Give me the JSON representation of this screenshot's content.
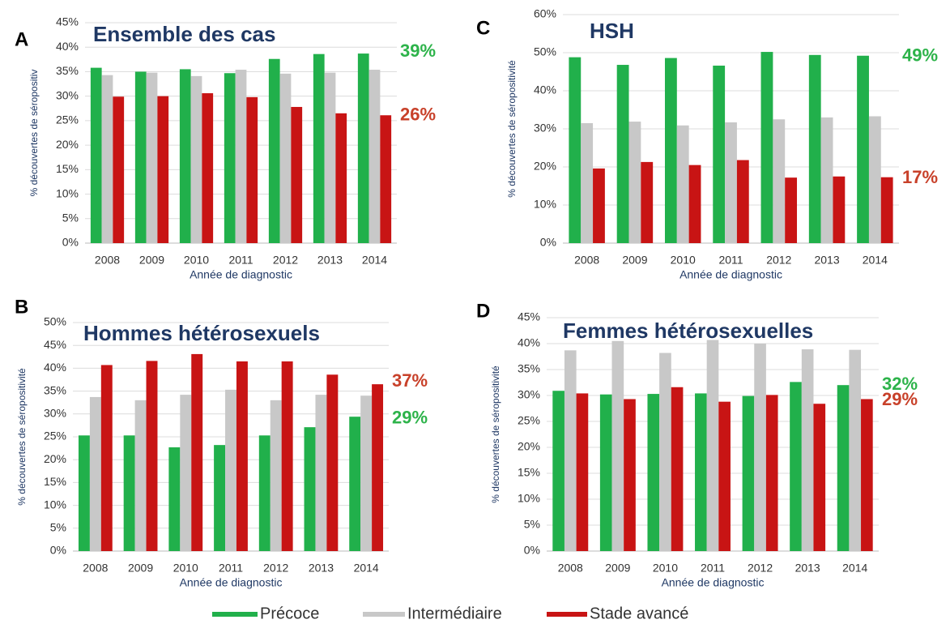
{
  "chart_data": [
    {
      "type": "bar",
      "label": "A",
      "title": "Ensemble des cas",
      "ylabel": "% découvertes de séropositiv",
      "xlabel": "Année de diagnostic",
      "categories": [
        "2008",
        "2009",
        "2010",
        "2011",
        "2012",
        "2013",
        "2014"
      ],
      "series": [
        {
          "name": "Précoce",
          "color": "#21b04b",
          "values": [
            35.8,
            35,
            35.5,
            34.7,
            37.6,
            38.6,
            38.7
          ]
        },
        {
          "name": "Intermédiaire",
          "color": "#c8c8c8",
          "values": [
            34.3,
            34.8,
            34.1,
            35.4,
            34.6,
            34.8,
            35.4
          ]
        },
        {
          "name": "Stade avancé",
          "color": "#c81414",
          "values": [
            29.9,
            30,
            30.6,
            29.8,
            27.8,
            26.5,
            26.1
          ]
        }
      ],
      "ylim": [
        0,
        45
      ],
      "yticks": [
        {
          "value": 0,
          "label": "0%"
        },
        {
          "value": 5,
          "label": "5%"
        },
        {
          "value": 10,
          "label": "10%"
        },
        {
          "value": 15,
          "label": "15%"
        },
        {
          "value": 20,
          "label": "20%"
        },
        {
          "value": 25,
          "label": "25%"
        },
        {
          "value": 30,
          "label": "30%"
        },
        {
          "value": 35,
          "label": "35%"
        },
        {
          "value": 40,
          "label": "40%"
        },
        {
          "value": 45,
          "label": "45%"
        }
      ],
      "grid": true,
      "annotations": [
        {
          "text": "39%",
          "value": 39,
          "color": "#2db34a"
        },
        {
          "text": "26%",
          "value": 26,
          "color": "#c8412a"
        }
      ]
    },
    {
      "type": "bar",
      "label": "B",
      "title": "Hommes hétérosexuels",
      "ylabel": "% découvertes de séropositivité",
      "xlabel": "Année de diagnostic",
      "categories": [
        "2008",
        "2009",
        "2010",
        "2011",
        "2012",
        "2013",
        "2014"
      ],
      "series": [
        {
          "name": "Précoce",
          "color": "#21b04b",
          "values": [
            25.3,
            25.3,
            22.7,
            23.2,
            25.3,
            27.1,
            29.4
          ]
        },
        {
          "name": "Intermédiaire",
          "color": "#c8c8c8",
          "values": [
            33.7,
            33,
            34.2,
            35.3,
            33,
            34.2,
            34
          ]
        },
        {
          "name": "Stade avancé",
          "color": "#c81414",
          "values": [
            40.7,
            41.6,
            43.1,
            41.5,
            41.5,
            38.6,
            36.5
          ]
        }
      ],
      "ylim": [
        0,
        50
      ],
      "yticks": [
        {
          "value": 0,
          "label": "0%"
        },
        {
          "value": 5,
          "label": "5%"
        },
        {
          "value": 10,
          "label": "10%"
        },
        {
          "value": 15,
          "label": "15%"
        },
        {
          "value": 20,
          "label": "20%"
        },
        {
          "value": 25,
          "label": "25%"
        },
        {
          "value": 30,
          "label": "30%"
        },
        {
          "value": 35,
          "label": "35%"
        },
        {
          "value": 40,
          "label": "40%"
        },
        {
          "value": 45,
          "label": "45%"
        },
        {
          "value": 50,
          "label": "50%"
        }
      ],
      "grid": true,
      "annotations": [
        {
          "text": "37%",
          "value": 37,
          "color": "#c8412a"
        },
        {
          "text": "29%",
          "value": 29,
          "color": "#2db34a"
        }
      ]
    },
    {
      "type": "bar",
      "label": "C",
      "title": "HSH",
      "ylabel": "% découvertes de séropositivité",
      "xlabel": "Année de diagnostic",
      "categories": [
        "2008",
        "2009",
        "2010",
        "2011",
        "2012",
        "2013",
        "2014"
      ],
      "series": [
        {
          "name": "Précoce",
          "color": "#21b04b",
          "values": [
            48.8,
            46.8,
            48.6,
            46.6,
            50.2,
            49.4,
            49.2
          ]
        },
        {
          "name": "Intermédiaire",
          "color": "#c8c8c8",
          "values": [
            31.5,
            31.9,
            30.9,
            31.7,
            32.5,
            33,
            33.3
          ]
        },
        {
          "name": "Stade avancé",
          "color": "#c81414",
          "values": [
            19.6,
            21.3,
            20.5,
            21.8,
            17.2,
            17.5,
            17.3
          ]
        }
      ],
      "ylim": [
        0,
        60
      ],
      "yticks": [
        {
          "value": 0,
          "label": "0%"
        },
        {
          "value": 10,
          "label": "10%"
        },
        {
          "value": 20,
          "label": "20%"
        },
        {
          "value": 30,
          "label": "30%"
        },
        {
          "value": 40,
          "label": "40%"
        },
        {
          "value": 50,
          "label": "50%"
        },
        {
          "value": 60,
          "label": "60%"
        }
      ],
      "grid": true,
      "annotations": [
        {
          "text": "49%",
          "value": 49,
          "color": "#2db34a"
        },
        {
          "text": "17%",
          "value": 17,
          "color": "#c8412a"
        }
      ]
    },
    {
      "type": "bar",
      "label": "D",
      "title": "Femmes hétérosexuelles",
      "ylabel": "% découvertes de séropositivité",
      "xlabel": "Année de diagnostic",
      "categories": [
        "2008",
        "2009",
        "2010",
        "2011",
        "2012",
        "2013",
        "2014"
      ],
      "series": [
        {
          "name": "Précoce",
          "color": "#21b04b",
          "values": [
            30.9,
            30.2,
            30.3,
            30.4,
            29.9,
            32.6,
            32
          ]
        },
        {
          "name": "Intermédiaire",
          "color": "#c8c8c8",
          "values": [
            38.7,
            40.5,
            38.2,
            40.7,
            40,
            38.9,
            38.8
          ]
        },
        {
          "name": "Stade avancé",
          "color": "#c81414",
          "values": [
            30.4,
            29.3,
            31.6,
            28.8,
            30.1,
            28.4,
            29.3
          ]
        }
      ],
      "ylim": [
        0,
        45
      ],
      "yticks": [
        {
          "value": 0,
          "label": "0%"
        },
        {
          "value": 5,
          "label": "5%"
        },
        {
          "value": 10,
          "label": "10%"
        },
        {
          "value": 15,
          "label": "15%"
        },
        {
          "value": 20,
          "label": "20%"
        },
        {
          "value": 25,
          "label": "25%"
        },
        {
          "value": 30,
          "label": "30%"
        },
        {
          "value": 35,
          "label": "35%"
        },
        {
          "value": 40,
          "label": "40%"
        },
        {
          "value": 45,
          "label": "45%"
        }
      ],
      "grid": true,
      "annotations": [
        {
          "text": "32%",
          "value": 32,
          "color": "#2db34a"
        },
        {
          "text": "29%",
          "value": 29,
          "color": "#c8412a"
        }
      ]
    }
  ]
}
